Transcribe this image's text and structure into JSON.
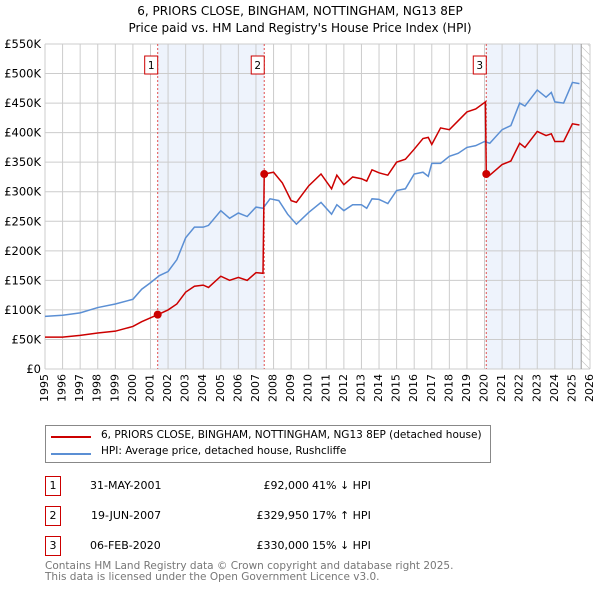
{
  "title": "6, PRIORS CLOSE, BINGHAM, NOTTINGHAM, NG13 8EP",
  "subtitle": "Price paid vs. HM Land Registry's House Price Index (HPI)",
  "chart_data": {
    "type": "line",
    "xlim": [
      1995,
      2026
    ],
    "ylim": [
      0,
      550000
    ],
    "yticks": [
      0,
      50000,
      100000,
      150000,
      200000,
      250000,
      300000,
      350000,
      400000,
      450000,
      500000,
      550000
    ],
    "ytick_labels": [
      "£0",
      "£50K",
      "£100K",
      "£150K",
      "£200K",
      "£250K",
      "£300K",
      "£350K",
      "£400K",
      "£450K",
      "£500K",
      "£550K"
    ],
    "xticks": [
      1995,
      1996,
      1997,
      1998,
      1999,
      2000,
      2001,
      2002,
      2003,
      2004,
      2005,
      2006,
      2007,
      2008,
      2009,
      2010,
      2011,
      2012,
      2013,
      2014,
      2015,
      2016,
      2017,
      2018,
      2019,
      2020,
      2021,
      2022,
      2023,
      2024,
      2025,
      2026
    ],
    "grid": true,
    "shaded_ranges": [
      [
        2001.41,
        2007.47
      ],
      [
        2020.1,
        2025.5
      ]
    ],
    "hatched_after": 2025.5,
    "series": [
      {
        "name": "6, PRIORS CLOSE, BINGHAM, NOTTINGHAM, NG13 8EP (detached house)",
        "color": "#cc0000",
        "x": [
          1995,
          1996,
          1997,
          1998,
          1999,
          2000,
          2000.5,
          2001.41,
          2002,
          2002.5,
          2003,
          2003.5,
          2004,
          2004.3,
          2005,
          2005.5,
          2006,
          2006.5,
          2007,
          2007.4,
          2007.47,
          2008,
          2008.5,
          2009,
          2009.3,
          2010,
          2010.7,
          2011.3,
          2011.6,
          2012,
          2012.5,
          2013,
          2013.3,
          2013.6,
          2014,
          2014.5,
          2015,
          2015.5,
          2016,
          2016.5,
          2016.8,
          2017,
          2017.5,
          2018,
          2018.5,
          2019,
          2019.5,
          2020.05,
          2020.1,
          2020.3,
          2021,
          2021.5,
          2022,
          2022.3,
          2023,
          2023.5,
          2023.8,
          2024,
          2024.5,
          2025,
          2025.4
        ],
        "y": [
          54000,
          54000,
          57000,
          61000,
          64000,
          72000,
          80000,
          92000,
          100000,
          110000,
          130000,
          140000,
          142000,
          138000,
          157000,
          150000,
          155000,
          150000,
          163000,
          162000,
          330000,
          333000,
          315000,
          285000,
          282000,
          310000,
          330000,
          305000,
          328000,
          312000,
          325000,
          322000,
          318000,
          337000,
          332000,
          328000,
          350000,
          355000,
          372000,
          390000,
          392000,
          380000,
          408000,
          405000,
          420000,
          435000,
          440000,
          452000,
          330000,
          328000,
          346000,
          352000,
          382000,
          375000,
          402000,
          395000,
          398000,
          385000,
          385000,
          415000,
          413000
        ]
      },
      {
        "name": "HPI: Average price, detached house, Rushcliffe",
        "color": "#5b8fd4",
        "x": [
          1995,
          1996,
          1997,
          1998,
          1999,
          2000,
          2000.5,
          2001,
          2001.5,
          2002,
          2002.5,
          2003,
          2003.5,
          2004,
          2004.3,
          2005,
          2005.5,
          2006,
          2006.5,
          2007,
          2007.4,
          2007.8,
          2008.3,
          2008.8,
          2009.3,
          2010,
          2010.7,
          2011.3,
          2011.6,
          2012,
          2012.5,
          2013,
          2013.3,
          2013.6,
          2014,
          2014.5,
          2015,
          2015.5,
          2016,
          2016.5,
          2016.8,
          2017,
          2017.5,
          2018,
          2018.5,
          2019,
          2019.5,
          2020,
          2020.3,
          2021,
          2021.5,
          2022,
          2022.3,
          2023,
          2023.5,
          2023.8,
          2024,
          2024.5,
          2025,
          2025.4
        ],
        "y": [
          89000,
          91000,
          95000,
          104000,
          110000,
          118000,
          135000,
          146000,
          158000,
          165000,
          185000,
          222000,
          240000,
          240000,
          243000,
          268000,
          255000,
          264000,
          258000,
          274000,
          272000,
          288000,
          285000,
          262000,
          245000,
          265000,
          282000,
          262000,
          278000,
          268000,
          278000,
          278000,
          272000,
          288000,
          287000,
          280000,
          302000,
          305000,
          330000,
          333000,
          326000,
          348000,
          348000,
          360000,
          365000,
          375000,
          378000,
          385000,
          382000,
          405000,
          412000,
          450000,
          445000,
          472000,
          460000,
          468000,
          452000,
          450000,
          485000,
          483000
        ]
      }
    ],
    "sales": [
      {
        "label": "1",
        "x": 2001.41,
        "y": 92000
      },
      {
        "label": "2",
        "x": 2007.47,
        "y": 329950
      },
      {
        "label": "3",
        "x": 2020.1,
        "y": 330000
      }
    ]
  },
  "legend": {
    "red": "6, PRIORS CLOSE, BINGHAM, NOTTINGHAM, NG13 8EP (detached house)",
    "blue": "HPI: Average price, detached house, Rushcliffe"
  },
  "table": [
    {
      "n": "1",
      "date": "31-MAY-2001",
      "price": "£92,000",
      "hpi": "41% ↓ HPI"
    },
    {
      "n": "2",
      "date": "19-JUN-2007",
      "price": "£329,950",
      "hpi": "17% ↑ HPI"
    },
    {
      "n": "3",
      "date": "06-FEB-2020",
      "price": "£330,000",
      "hpi": "15% ↓ HPI"
    }
  ],
  "footer": [
    "Contains HM Land Registry data © Crown copyright and database right 2025.",
    "This data is licensed under the Open Government Licence v3.0."
  ]
}
